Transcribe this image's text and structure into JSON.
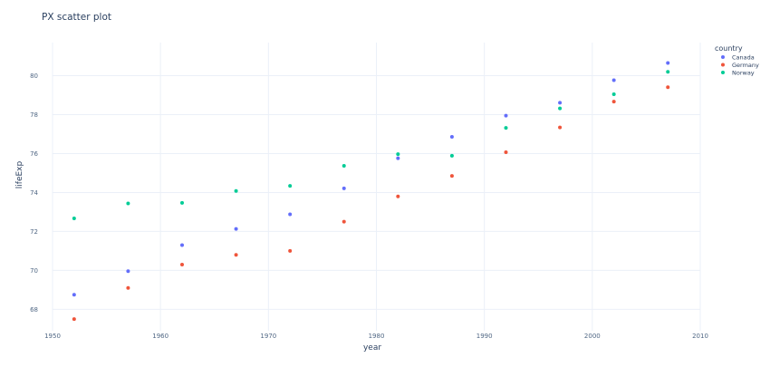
{
  "chart_data": {
    "type": "scatter",
    "title": "PX scatter plot",
    "xlabel": "year",
    "ylabel": "lifeExp",
    "xlim": [
      1950,
      2010
    ],
    "ylim": [
      66.9,
      81.7
    ],
    "x_ticks": [
      1950,
      1960,
      1970,
      1980,
      1990,
      2000,
      2010
    ],
    "y_ticks": [
      68,
      70,
      72,
      74,
      76,
      78,
      80
    ],
    "grid": true,
    "legend": {
      "title": "country",
      "position": "top-right"
    },
    "x": [
      1952,
      1957,
      1962,
      1967,
      1972,
      1977,
      1982,
      1987,
      1992,
      1997,
      2002,
      2007
    ],
    "series": [
      {
        "name": "Canada",
        "color": "#636efa",
        "values": [
          68.75,
          69.96,
          71.3,
          72.13,
          72.88,
          74.21,
          75.76,
          76.86,
          77.95,
          78.61,
          79.77,
          80.65
        ]
      },
      {
        "name": "Germany",
        "color": "#ef553b",
        "values": [
          67.5,
          69.1,
          70.3,
          70.8,
          71.0,
          72.5,
          73.8,
          74.85,
          76.07,
          77.34,
          78.67,
          79.41
        ]
      },
      {
        "name": "Norway",
        "color": "#00cc96",
        "values": [
          72.67,
          73.44,
          73.47,
          74.08,
          74.34,
          75.37,
          75.97,
          75.89,
          77.32,
          78.32,
          79.05,
          80.2
        ]
      }
    ]
  }
}
